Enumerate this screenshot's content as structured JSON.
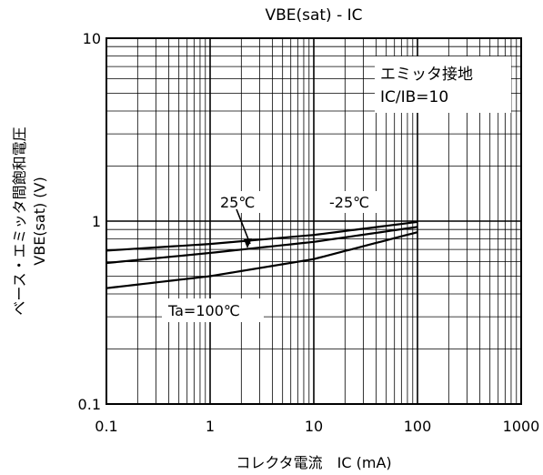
{
  "chart_data": {
    "type": "line",
    "title": "VBE(sat) - IC",
    "xlabel": "コレクタ電流　IC (mA)",
    "ylabel_line1": "ベース・エミッタ間飽和電圧",
    "ylabel_line2": "VBE(sat) (V)",
    "x_scale": "log",
    "y_scale": "log",
    "xlim": [
      0.1,
      1000
    ],
    "ylim": [
      0.1,
      10
    ],
    "x_ticks": [
      {
        "value": 0.1,
        "label": "0.1"
      },
      {
        "value": 1,
        "label": "1"
      },
      {
        "value": 10,
        "label": "10"
      },
      {
        "value": 100,
        "label": "100"
      },
      {
        "value": 1000,
        "label": "1000"
      }
    ],
    "y_ticks": [
      {
        "value": 0.1,
        "label": "0.1"
      },
      {
        "value": 1,
        "label": "1"
      },
      {
        "value": 10,
        "label": "10"
      }
    ],
    "grid": true,
    "annotation_box": {
      "line1": "エミッタ接地",
      "line2": "IC/IB=10"
    },
    "series": [
      {
        "name": "25℃",
        "x": [
          0.1,
          1,
          10,
          100
        ],
        "y": [
          0.69,
          0.75,
          0.84,
          0.99
        ]
      },
      {
        "name": "-25℃",
        "x": [
          0.1,
          1,
          10,
          100
        ],
        "y": [
          0.59,
          0.67,
          0.77,
          0.93
        ]
      },
      {
        "name": "Ta=100℃",
        "x": [
          0.1,
          1,
          10,
          100
        ],
        "y": [
          0.43,
          0.5,
          0.62,
          0.87
        ]
      }
    ],
    "line_color": "#000000"
  }
}
